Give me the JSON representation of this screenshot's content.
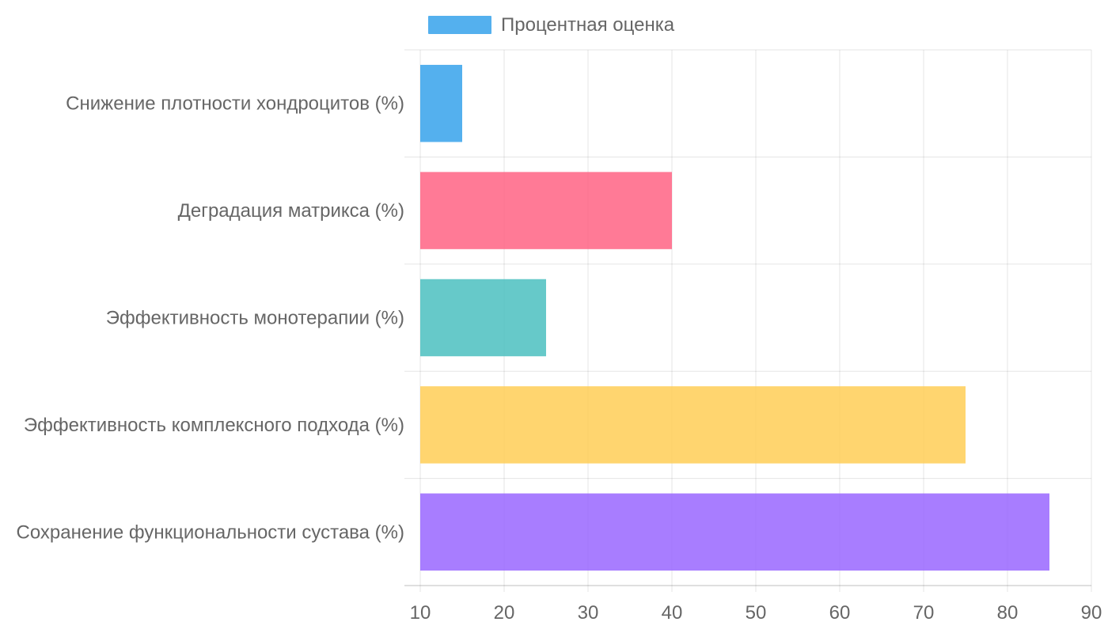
{
  "chart_data": {
    "type": "bar",
    "orientation": "horizontal",
    "categories": [
      "Снижение плотности хондроцитов (%)",
      "Деградация матрикса (%)",
      "Эффективность монотерапии (%)",
      "Эффективность комплексного подхода (%)",
      "Сохранение функциональности сустава (%)"
    ],
    "series": [
      {
        "name": "Процентная оценка",
        "values": [
          15,
          40,
          25,
          75,
          85
        ],
        "colors": [
          "#36A2EB",
          "#FF6384",
          "#4BC0C0",
          "#FFCE56",
          "#9966FF"
        ]
      }
    ],
    "xlim": [
      10,
      90
    ],
    "xticks": [
      "10",
      "20",
      "30",
      "40",
      "50",
      "60",
      "70",
      "80",
      "90"
    ],
    "grid": true,
    "legend_position": "top",
    "legend_color": "#36A2EB"
  }
}
